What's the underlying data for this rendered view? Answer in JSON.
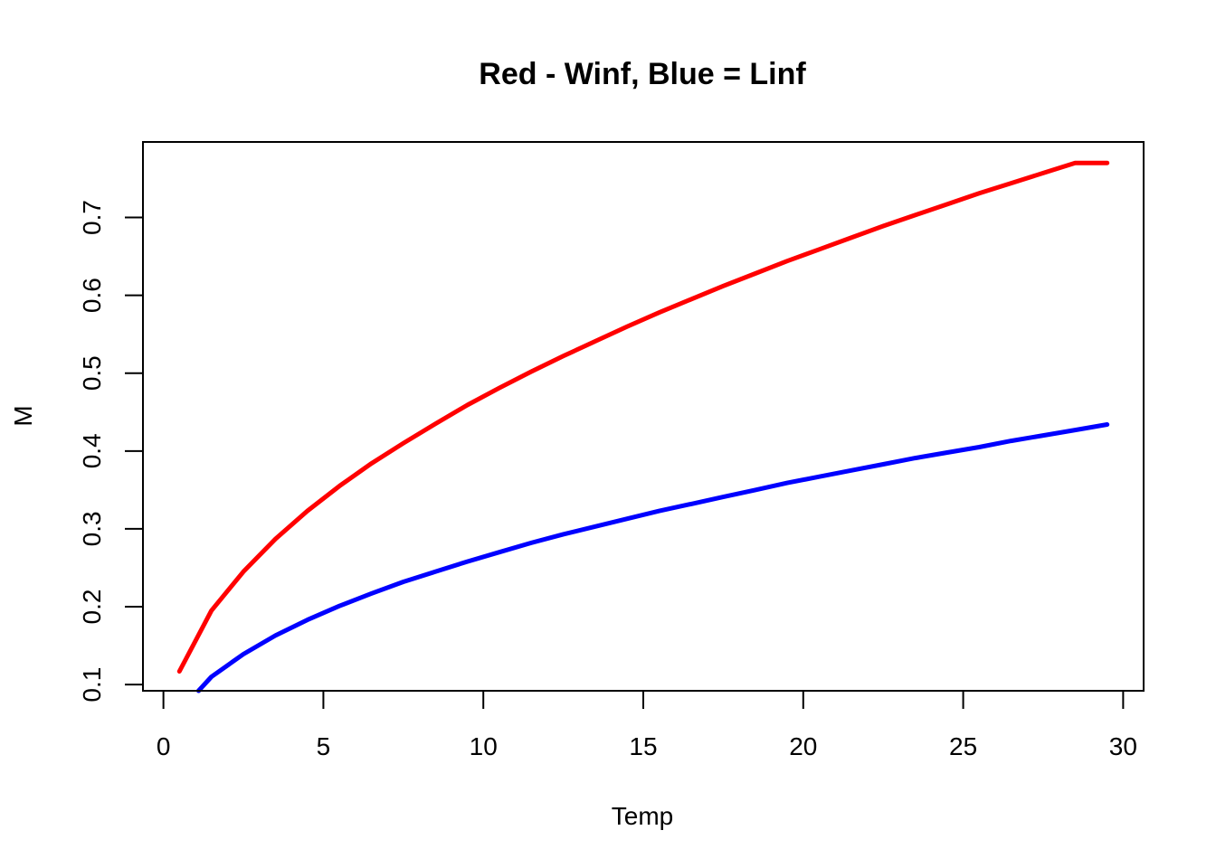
{
  "chart_data": {
    "type": "line",
    "title": "Red - Winf, Blue = Linf",
    "xlabel": "Temp",
    "ylabel": "M",
    "xlim": [
      -0.64,
      30.64
    ],
    "ylim": [
      0.092,
      0.797
    ],
    "x_ticks": [
      0,
      5,
      10,
      15,
      20,
      25,
      30
    ],
    "x_tick_labels": [
      "0",
      "5",
      "10",
      "15",
      "20",
      "25",
      "30"
    ],
    "y_ticks": [
      0.1,
      0.2,
      0.3,
      0.4,
      0.5,
      0.6,
      0.7
    ],
    "y_tick_labels": [
      "0.1",
      "0.2",
      "0.3",
      "0.4",
      "0.5",
      "0.6",
      "0.7"
    ],
    "grid": false,
    "legend": "none",
    "series": [
      {
        "color": "#ff0000",
        "x": [
          0.5,
          1.5,
          2.5,
          3.5,
          4.5,
          5.5,
          6.5,
          7.5,
          8.5,
          9.5,
          10.5,
          11.5,
          12.5,
          13.5,
          14.5,
          15.5,
          16.5,
          17.5,
          18.5,
          19.5,
          20.5,
          21.5,
          22.5,
          23.5,
          24.5,
          25.5,
          26.5,
          27.5,
          28.5,
          29.5
        ],
        "y": [
          0.117,
          0.195,
          0.245,
          0.287,
          0.323,
          0.355,
          0.384,
          0.41,
          0.435,
          0.459,
          0.481,
          0.502,
          0.522,
          0.541,
          0.56,
          0.578,
          0.595,
          0.612,
          0.628,
          0.644,
          0.659,
          0.674,
          0.689,
          0.703,
          0.717,
          0.731,
          0.744,
          0.757,
          0.77,
          0.77
        ]
      },
      {
        "color": "#0000ff",
        "x": [
          1.1,
          1.5,
          2.5,
          3.5,
          4.5,
          5.5,
          6.5,
          7.5,
          8.5,
          9.5,
          10.5,
          11.5,
          12.5,
          13.5,
          14.5,
          15.5,
          16.5,
          17.5,
          18.5,
          19.5,
          20.5,
          21.5,
          22.5,
          23.5,
          24.5,
          25.5,
          26.5,
          27.5,
          28.5,
          29.5
        ],
        "y": [
          0.092,
          0.11,
          0.139,
          0.163,
          0.183,
          0.201,
          0.217,
          0.232,
          0.245,
          0.258,
          0.27,
          0.282,
          0.293,
          0.303,
          0.313,
          0.323,
          0.332,
          0.341,
          0.35,
          0.359,
          0.367,
          0.375,
          0.383,
          0.391,
          0.398,
          0.405,
          0.413,
          0.42,
          0.427,
          0.434
        ]
      }
    ]
  }
}
